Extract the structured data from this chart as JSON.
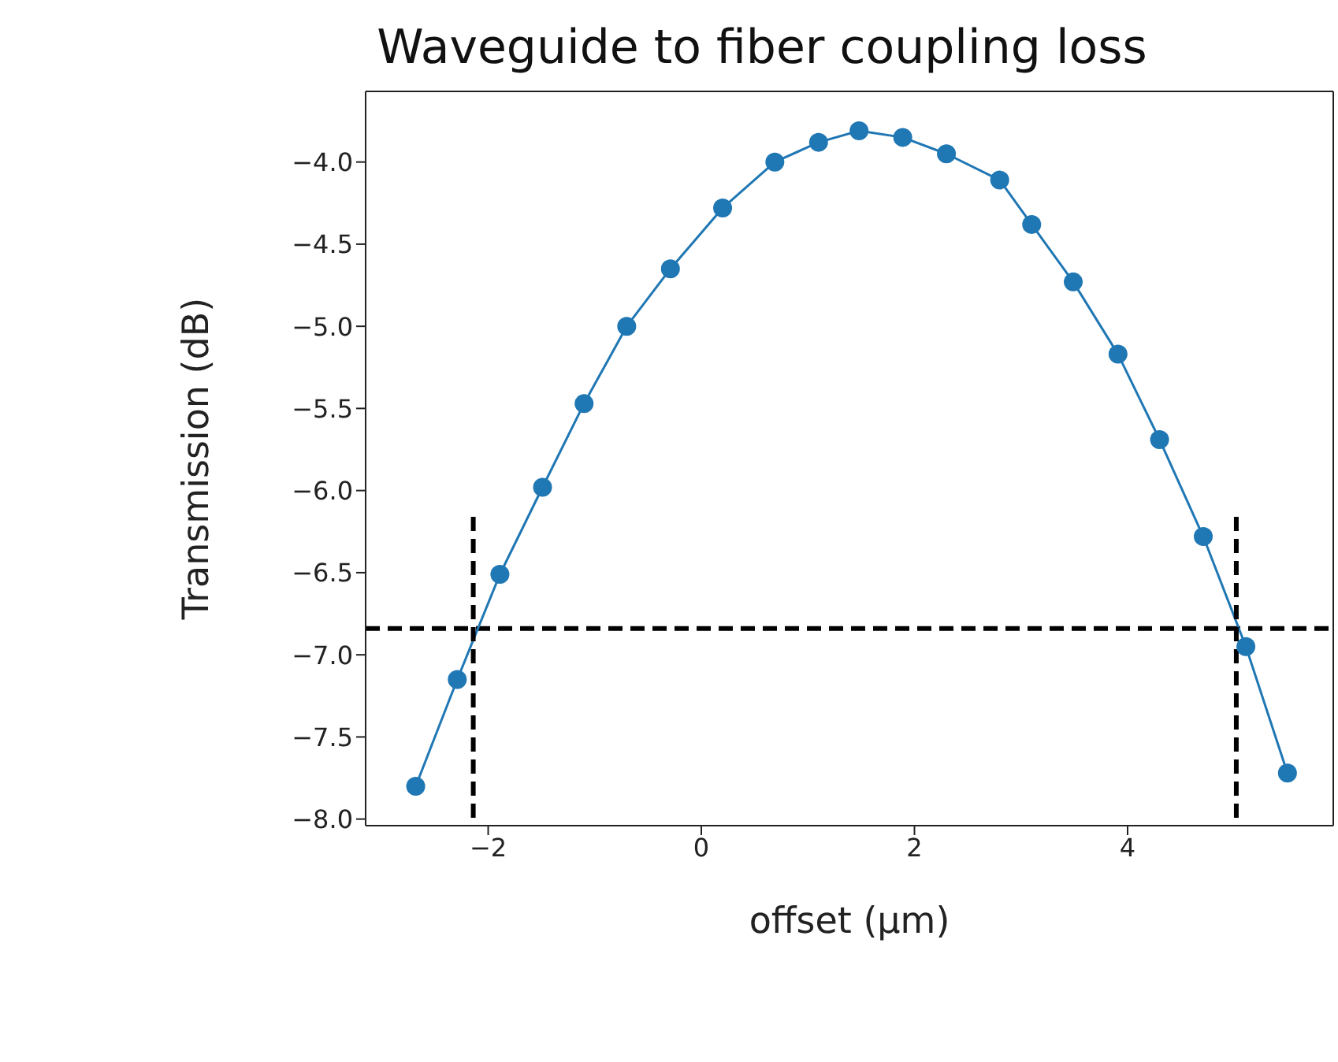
{
  "chart_data": {
    "type": "line",
    "title": "Waveguide to fiber coupling loss",
    "xlabel": "offset (µm)",
    "ylabel": "Transmission (dB)",
    "marker": "circle",
    "line_style": "solid",
    "xlim": [
      -3.15,
      5.93
    ],
    "ylim": [
      -8.04,
      -3.57
    ],
    "xticks": [
      {
        "value": -2,
        "label": "−2"
      },
      {
        "value": 0,
        "label": "0"
      },
      {
        "value": 2,
        "label": "2"
      },
      {
        "value": 4,
        "label": "4"
      }
    ],
    "yticks": [
      {
        "value": -8,
        "label": "−8.0"
      },
      {
        "value": -7.5,
        "label": "−7.5"
      },
      {
        "value": -7,
        "label": "−7.0"
      },
      {
        "value": -6.5,
        "label": "−6.5"
      },
      {
        "value": -6,
        "label": "−6.0"
      },
      {
        "value": -5.5,
        "label": "−5.5"
      },
      {
        "value": -5,
        "label": "−5.0"
      },
      {
        "value": -4.5,
        "label": "−4.5"
      },
      {
        "value": -4,
        "label": "−4.0"
      }
    ],
    "series": [
      {
        "color": "#1f77b4",
        "x": [
          -2.68,
          -2.29,
          -1.89,
          -1.49,
          -1.1,
          -0.7,
          -0.29,
          0.2,
          0.69,
          1.1,
          1.48,
          1.89,
          2.3,
          2.8,
          3.1,
          3.49,
          3.91,
          4.3,
          4.71,
          5.11,
          5.5
        ],
        "values": [
          -7.8,
          -7.15,
          -6.51,
          -5.98,
          -5.47,
          -5.0,
          -4.65,
          -4.28,
          -4.0,
          -3.88,
          -3.81,
          -3.85,
          -3.95,
          -4.11,
          -4.38,
          -4.73,
          -5.17,
          -5.69,
          -6.28,
          -6.95,
          -7.72
        ]
      },
      {
        "color": "#000000",
        "x": [
          -2.14,
          -2.14
        ],
        "values": [
          -6.16,
          -8.04
        ],
        "marker": "none",
        "line_style": "dashed"
      },
      {
        "color": "#000000",
        "x": [
          5.02,
          5.02
        ],
        "values": [
          -6.16,
          -8.04
        ],
        "marker": "none",
        "line_style": "dashed"
      }
    ],
    "ref_lines": [
      {
        "axis": "y",
        "value": -6.84,
        "color": "#000000",
        "line_style": "dashed"
      }
    ]
  }
}
